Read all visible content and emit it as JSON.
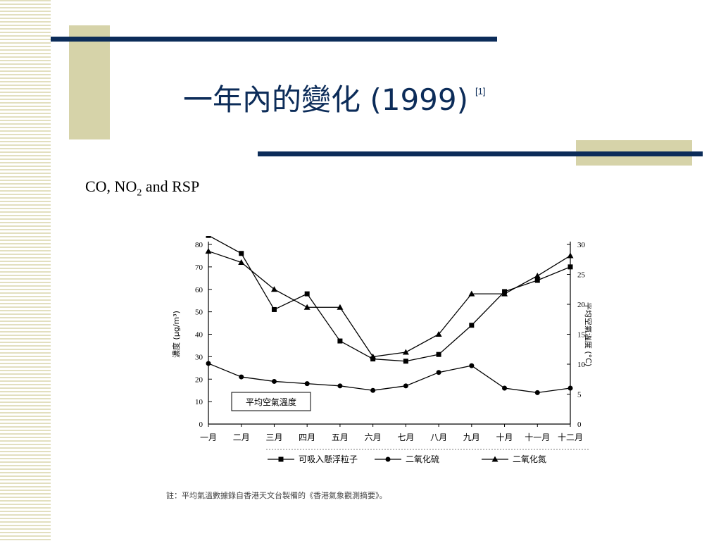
{
  "slide": {
    "title": "一年內的變化 (1999)",
    "reference": "[1]",
    "subtitle_main": "CO, NO",
    "subtitle_sub": "2",
    "subtitle_tail": " and RSP"
  },
  "colors": {
    "navy": "#0c2c59",
    "tan": "#d6d3a9",
    "stripe": "#e2dfbf"
  },
  "chart_data": {
    "type": "line",
    "categories": [
      "一月",
      "二月",
      "三月",
      "四月",
      "五月",
      "六月",
      "七月",
      "八月",
      "九月",
      "十月",
      "十一月",
      "十二月"
    ],
    "ylabel_left": "濃度 (μg/m³)",
    "ylabel_right": "平均空氣溫度 (°C)",
    "ylim_left": [
      0,
      80
    ],
    "yticks_left": [
      0,
      10,
      20,
      30,
      40,
      50,
      60,
      70,
      80
    ],
    "ylim_right": [
      0,
      30
    ],
    "yticks_right": [
      0,
      5,
      10,
      15,
      20,
      25,
      30
    ],
    "series": [
      {
        "name": "可吸入懸浮粒子",
        "marker": "square",
        "axis": "left",
        "values": [
          84,
          76,
          51,
          58,
          37,
          29,
          28,
          31,
          44,
          59,
          64,
          70
        ]
      },
      {
        "name": "二氧化硫",
        "marker": "circle",
        "axis": "left",
        "values": [
          27,
          21,
          19,
          18,
          17,
          15,
          17,
          23,
          26,
          16,
          14,
          16
        ]
      },
      {
        "name": "二氧化氮",
        "marker": "triangle",
        "axis": "left",
        "values": [
          77,
          72,
          60,
          52,
          52,
          30,
          32,
          40,
          58,
          58,
          66,
          75
        ]
      }
    ],
    "annotation": "平均空氣溫度",
    "footnote": "註：平均氣溫數據錄自香港天文台製備的《香港氣象觀測摘要》。",
    "grid": false,
    "legend": "bottom"
  }
}
